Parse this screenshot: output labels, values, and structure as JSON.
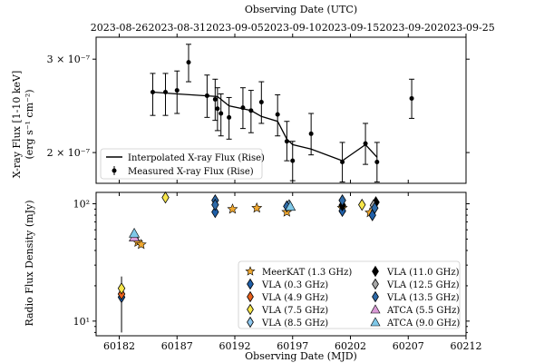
{
  "figure": {
    "top_axis_title": "Observing Date (UTC)",
    "bottom_axis_title": "Observing Date (MJD)"
  },
  "chart_data": [
    {
      "type": "scatter",
      "panel": "top",
      "title": "",
      "ylabel_line1": "X-ray Flux [1-10 keV]",
      "ylabel_line2": "(erg s⁻¹ cm⁻²)",
      "yscale": "log",
      "xlim": [
        60180,
        60212
      ],
      "ylim": [
        1.75e-07,
        3.3e-07
      ],
      "yticks": [
        {
          "value": 3e-07,
          "label": "3 × 10⁻⁷"
        },
        {
          "value": 2e-07,
          "label": "2 × 10⁻⁷"
        }
      ],
      "utc_ticks": [
        {
          "mjd": 60182,
          "label": "2023-08-26"
        },
        {
          "mjd": 60187,
          "label": "2023-08-31"
        },
        {
          "mjd": 60192,
          "label": "2023-09-05"
        },
        {
          "mjd": 60197,
          "label": "2023-09-10"
        },
        {
          "mjd": 60202,
          "label": "2023-09-15"
        },
        {
          "mjd": 60207,
          "label": "2023-09-20"
        },
        {
          "mjd": 60212,
          "label": "2023-09-25"
        }
      ],
      "legend": [
        {
          "marker": "line",
          "label": "Interpolated X-ray Flux (Rise)"
        },
        {
          "marker": "errorbar",
          "label": "Measured X-ray Flux (Rise)"
        }
      ],
      "legend_position": "lower-left",
      "measured": [
        {
          "x": 60184.9,
          "y": 2.6e-07,
          "lo": 2.35e-07,
          "hi": 2.82e-07
        },
        {
          "x": 60186.0,
          "y": 2.6e-07,
          "lo": 2.35e-07,
          "hi": 2.82e-07
        },
        {
          "x": 60187.0,
          "y": 2.62e-07,
          "lo": 2.37e-07,
          "hi": 2.85e-07
        },
        {
          "x": 60188.0,
          "y": 2.96e-07,
          "lo": 2.72e-07,
          "hi": 3.2e-07
        },
        {
          "x": 60189.6,
          "y": 2.56e-07,
          "lo": 2.33e-07,
          "hi": 2.8e-07
        },
        {
          "x": 60190.3,
          "y": 2.52e-07,
          "lo": 2.3e-07,
          "hi": 2.75e-07
        },
        {
          "x": 60190.5,
          "y": 2.42e-07,
          "lo": 2.2e-07,
          "hi": 2.65e-07
        },
        {
          "x": 60190.8,
          "y": 2.37e-07,
          "lo": 2.15e-07,
          "hi": 2.58e-07
        },
        {
          "x": 60191.5,
          "y": 2.33e-07,
          "lo": 2.12e-07,
          "hi": 2.54e-07
        },
        {
          "x": 60192.7,
          "y": 2.43e-07,
          "lo": 2.22e-07,
          "hi": 2.65e-07
        },
        {
          "x": 60193.4,
          "y": 2.4e-07,
          "lo": 2.18e-07,
          "hi": 2.62e-07
        },
        {
          "x": 60194.3,
          "y": 2.49e-07,
          "lo": 2.27e-07,
          "hi": 2.72e-07
        },
        {
          "x": 60195.7,
          "y": 2.36e-07,
          "lo": 2.15e-07,
          "hi": 2.57e-07
        },
        {
          "x": 60196.5,
          "y": 2.1e-07,
          "lo": 1.93e-07,
          "hi": 2.29e-07
        },
        {
          "x": 60197.0,
          "y": 1.93e-07,
          "lo": 1.77e-07,
          "hi": 2.1e-07
        },
        {
          "x": 60198.6,
          "y": 2.17e-07,
          "lo": 1.98e-07,
          "hi": 2.37e-07
        },
        {
          "x": 60201.3,
          "y": 1.92e-07,
          "lo": 1.76e-07,
          "hi": 2.09e-07
        },
        {
          "x": 60203.3,
          "y": 2.08e-07,
          "lo": 1.9e-07,
          "hi": 2.27e-07
        },
        {
          "x": 60204.3,
          "y": 1.92e-07,
          "lo": 1.76e-07,
          "hi": 2.09e-07
        },
        {
          "x": 60207.3,
          "y": 2.53e-07,
          "lo": 2.32e-07,
          "hi": 2.75e-07
        }
      ],
      "interpolated": {
        "x": [
          60184.9,
          60187.0,
          60190.5,
          60191.5,
          60193.4,
          60194.3,
          60195.7,
          60196.5,
          60197.0,
          60198.6,
          60201.3,
          60203.3,
          60204.3
        ],
        "y": [
          2.6e-07,
          2.58e-07,
          2.55e-07,
          2.45e-07,
          2.4e-07,
          2.34e-07,
          2.29e-07,
          2.12e-07,
          2.07e-07,
          2.03e-07,
          1.93e-07,
          2.07e-07,
          1.96e-07
        ]
      }
    },
    {
      "type": "scatter",
      "panel": "bottom",
      "title": "",
      "xlabel": "Observing Date (MJD)",
      "ylabel": "Radio Flux Density (mJy)",
      "yscale": "log",
      "xlim": [
        60180,
        60212
      ],
      "ylim": [
        7.5,
        125
      ],
      "xticks": [
        60182,
        60187,
        60192,
        60197,
        60202,
        60207,
        60212
      ],
      "yticks": [
        {
          "value": 10,
          "label": "10¹"
        },
        {
          "value": 100,
          "label": "10²"
        }
      ],
      "legend_position": "lower-right",
      "series": [
        {
          "name": "MeerKAT (1.3 GHz)",
          "marker": "star",
          "color": "#f0a830",
          "points": [
            {
              "x": 60183.6,
              "y": 47
            },
            {
              "x": 60183.9,
              "y": 45
            },
            {
              "x": 60191.8,
              "y": 90
            },
            {
              "x": 60193.9,
              "y": 92
            },
            {
              "x": 60196.5,
              "y": 85
            },
            {
              "x": 60201.3,
              "y": 92
            },
            {
              "x": 60203.7,
              "y": 84
            }
          ]
        },
        {
          "name": "VLA (0.3 GHz)",
          "marker": "diamond",
          "color": "#1f5fa8",
          "points": [
            {
              "x": 60182.2,
              "y": 16,
              "lo": 8,
              "hi": 24
            },
            {
              "x": 60190.3,
              "y": 85,
              "lo": 78,
              "hi": 92
            },
            {
              "x": 60201.3,
              "y": 87,
              "lo": 80,
              "hi": 94
            },
            {
              "x": 60203.9,
              "y": 80,
              "lo": 73,
              "hi": 88
            }
          ]
        },
        {
          "name": "VLA (4.9 GHz)",
          "marker": "diamond",
          "color": "#e8601c",
          "points": [
            {
              "x": 60182.2,
              "y": 17
            }
          ]
        },
        {
          "name": "VLA (7.5 GHz)",
          "marker": "diamond",
          "color": "#f7e64a",
          "points": [
            {
              "x": 60182.2,
              "y": 19
            },
            {
              "x": 60186.0,
              "y": 113
            },
            {
              "x": 60203.0,
              "y": 98
            }
          ]
        },
        {
          "name": "VLA (8.5 GHz)",
          "marker": "diamond",
          "color": "#8ec8f0",
          "points": [
            {
              "x": 60196.7,
              "y": 97
            }
          ]
        },
        {
          "name": "VLA (11.0 GHz)",
          "marker": "diamond",
          "color": "#000000",
          "points": [
            {
              "x": 60201.3,
              "y": 97
            },
            {
              "x": 60204.2,
              "y": 103
            }
          ]
        },
        {
          "name": "VLA (12.5 GHz)",
          "marker": "diamond",
          "color": "#a8a8a8",
          "points": [
            {
              "x": 60204.0,
              "y": 97
            }
          ]
        },
        {
          "name": "VLA (13.5 GHz)",
          "marker": "diamond",
          "color": "#2e6aa8",
          "points": [
            {
              "x": 60190.3,
              "y": 107
            },
            {
              "x": 60190.3,
              "y": 98
            },
            {
              "x": 60196.5,
              "y": 95
            },
            {
              "x": 60201.3,
              "y": 107
            },
            {
              "x": 60204.1,
              "y": 92
            }
          ]
        },
        {
          "name": "ATCA (5.5 GHz)",
          "marker": "triangle",
          "color": "#d99ad6",
          "points": [
            {
              "x": 60183.3,
              "y": 52
            }
          ]
        },
        {
          "name": "ATCA (9.0 GHz)",
          "marker": "triangle",
          "color": "#7fc8e8",
          "points": [
            {
              "x": 60183.3,
              "y": 56
            },
            {
              "x": 60196.8,
              "y": 95
            }
          ]
        }
      ]
    }
  ]
}
